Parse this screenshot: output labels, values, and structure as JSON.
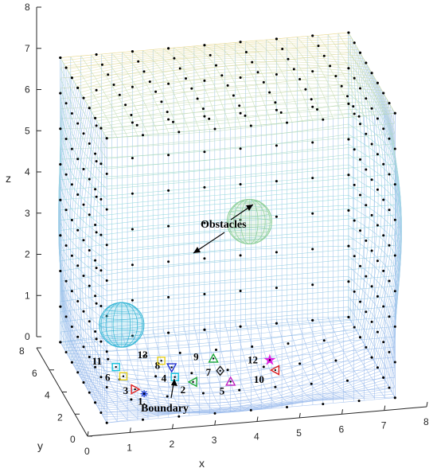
{
  "chart_data": {
    "type": "scatter",
    "title": "",
    "xlabel": "x",
    "ylabel": "y",
    "zlabel": "z",
    "xlim": [
      0,
      8
    ],
    "ylim": [
      0,
      8
    ],
    "zlim": [
      0,
      8
    ],
    "x_ticks": [
      "0",
      "1",
      "2",
      "3",
      "4",
      "5",
      "6",
      "7",
      "8"
    ],
    "y_ticks": [
      "0",
      "2",
      "4",
      "6",
      "8"
    ],
    "z_ticks": [
      "0",
      "1",
      "2",
      "3",
      "4",
      "5",
      "6",
      "7",
      "8"
    ],
    "grid": false,
    "annotations": {
      "obstacles": "Obstacles",
      "boundary": "Boundary"
    },
    "obstacles": [
      {
        "center": [
          1.3,
          3.3,
          1.7
        ],
        "radius": 0.55,
        "color": "#35b6d6"
      },
      {
        "center": [
          4.6,
          5.2,
          3.4
        ],
        "radius": 0.55,
        "color": "#8fcf9a"
      }
    ],
    "agents": [
      {
        "label": "1.",
        "position": [
          1.5,
          1.1,
          0.6
        ],
        "marker": "asterisk",
        "color": "#1f3fd6"
      },
      {
        "label": "2",
        "position": [
          2.7,
          1.4,
          0.7
        ],
        "marker": "triangle-left",
        "color": "#1faa3a"
      },
      {
        "label": "3",
        "position": [
          1.3,
          1.2,
          0.7
        ],
        "marker": "triangle-right",
        "color": "#e02020"
      },
      {
        "label": "4",
        "position": [
          2.3,
          1.6,
          0.8
        ],
        "marker": "square",
        "color": "#18c7e0"
      },
      {
        "label": "5",
        "position": [
          3.6,
          1.5,
          0.6
        ],
        "marker": "triangle-up",
        "color": "#c020c0"
      },
      {
        "label": "6",
        "position": [
          1.1,
          1.7,
          0.9
        ],
        "marker": "square",
        "color": "#e8d01a"
      },
      {
        "label": "7",
        "position": [
          3.4,
          1.8,
          0.8
        ],
        "marker": "diamond",
        "color": "#222222"
      },
      {
        "label": "8",
        "position": [
          2.3,
          2.1,
          0.9
        ],
        "marker": "triangle-down",
        "color": "#2030d0"
      },
      {
        "label": "9",
        "position": [
          3.3,
          2.2,
          1.0
        ],
        "marker": "triangle-up",
        "color": "#1faa3a"
      },
      {
        "label": "10",
        "position": [
          4.7,
          1.8,
          0.7
        ],
        "marker": "triangle-left",
        "color": "#e02020"
      },
      {
        "label": "11",
        "position": [
          1.0,
          2.2,
          1.0
        ],
        "marker": "square",
        "color": "#18c7e0"
      },
      {
        "label": "12",
        "position": [
          4.6,
          2.0,
          0.9
        ],
        "marker": "pentagram",
        "color": "#e020e0"
      },
      {
        "label": "13",
        "position": [
          2.1,
          2.4,
          1.0
        ],
        "marker": "square",
        "color": "#e8d01a"
      }
    ],
    "colors": {
      "mesh_top": "#f0d98a",
      "mesh_bottom": "#8fb3ea",
      "mesh_mid": "#7fd6d6",
      "axis": "#262626",
      "grid_points": "#000000"
    }
  }
}
